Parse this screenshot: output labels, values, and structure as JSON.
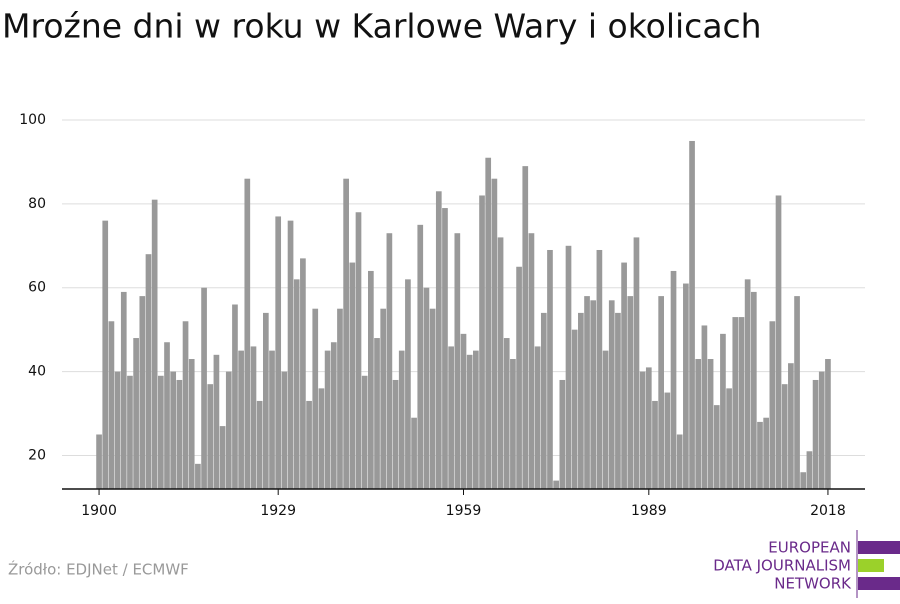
{
  "chart_data": {
    "type": "bar",
    "title": "Mroźne dni w roku w Karlowe Wary i okolicach",
    "source": "Źródło: EDJNet / ECMWF",
    "logo": [
      "EUROPEAN",
      "DATA JOURNALISM",
      "NETWORK"
    ],
    "color": "#999999",
    "grid": true,
    "x": [
      1900,
      1901,
      1902,
      1903,
      1904,
      1905,
      1906,
      1907,
      1908,
      1909,
      1910,
      1911,
      1912,
      1913,
      1914,
      1915,
      1916,
      1917,
      1918,
      1919,
      1920,
      1921,
      1922,
      1923,
      1924,
      1925,
      1926,
      1927,
      1928,
      1929,
      1930,
      1931,
      1932,
      1933,
      1934,
      1935,
      1936,
      1937,
      1938,
      1939,
      1940,
      1941,
      1942,
      1943,
      1944,
      1945,
      1946,
      1947,
      1948,
      1949,
      1950,
      1951,
      1952,
      1953,
      1954,
      1955,
      1956,
      1957,
      1958,
      1959,
      1960,
      1961,
      1962,
      1963,
      1964,
      1965,
      1966,
      1967,
      1968,
      1969,
      1970,
      1971,
      1972,
      1973,
      1974,
      1975,
      1976,
      1977,
      1978,
      1979,
      1980,
      1981,
      1982,
      1983,
      1984,
      1985,
      1986,
      1987,
      1988,
      1989,
      1990,
      1991,
      1992,
      1993,
      1994,
      1995,
      1996,
      1997,
      1998,
      1999,
      2000,
      2001,
      2002,
      2003,
      2004,
      2005,
      2006,
      2007,
      2008,
      2009,
      2010,
      2011,
      2012,
      2013,
      2014,
      2015,
      2016,
      2017,
      2018
    ],
    "values": [
      25,
      76,
      52,
      40,
      59,
      39,
      48,
      58,
      68,
      81,
      39,
      47,
      40,
      38,
      52,
      43,
      18,
      60,
      37,
      44,
      27,
      40,
      56,
      45,
      86,
      46,
      33,
      54,
      45,
      77,
      40,
      76,
      62,
      67,
      33,
      55,
      36,
      45,
      47,
      55,
      86,
      66,
      78,
      39,
      64,
      48,
      55,
      73,
      38,
      45,
      62,
      29,
      75,
      60,
      55,
      83,
      79,
      46,
      73,
      49,
      44,
      45,
      82,
      91,
      86,
      72,
      48,
      43,
      65,
      89,
      73,
      46,
      54,
      69,
      14,
      38,
      70,
      50,
      54,
      58,
      57,
      69,
      45,
      57,
      54,
      66,
      58,
      72,
      40,
      41,
      33,
      58,
      35,
      64,
      25,
      61,
      95,
      43,
      51,
      43,
      32,
      49,
      36,
      53,
      53,
      62,
      59,
      28,
      29,
      52,
      82,
      37,
      42,
      58,
      16,
      21,
      38,
      40,
      43
    ],
    "xlim": [
      1894,
      2024
    ],
    "xticks": [
      1900,
      1929,
      1959,
      1989,
      2018
    ],
    "ylim": [
      12,
      100
    ],
    "yticks": [
      20,
      40,
      60,
      80,
      100
    ]
  }
}
